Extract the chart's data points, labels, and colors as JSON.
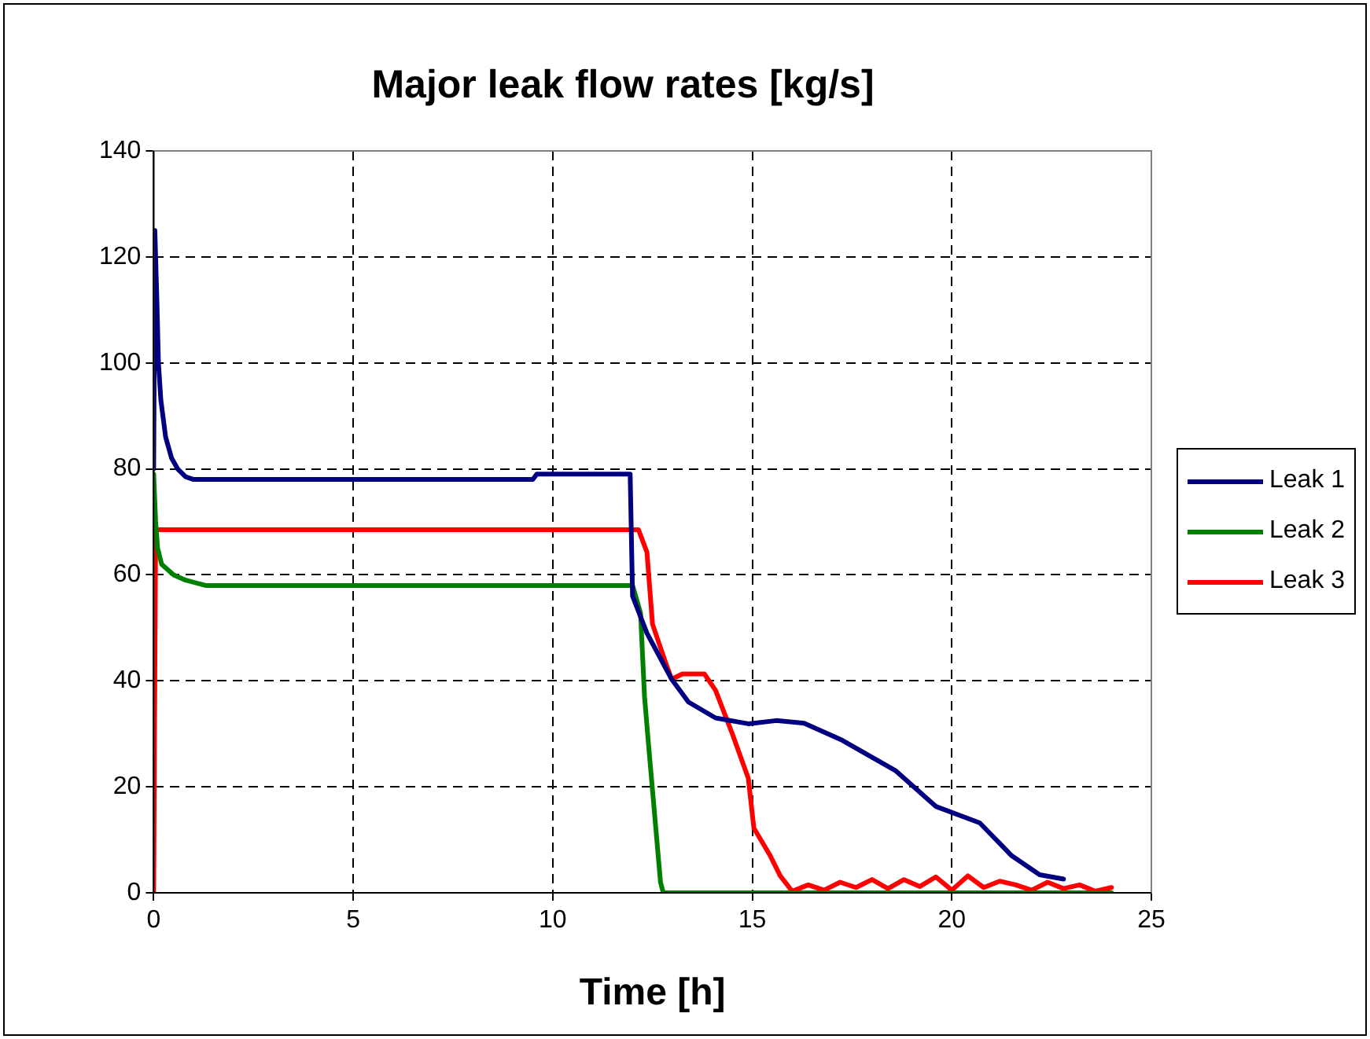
{
  "chart_data": {
    "type": "line",
    "title": "Major leak flow rates [kg/s]",
    "xlabel": "Time [h]",
    "xlim": [
      0,
      25
    ],
    "xticks": [
      0,
      5,
      10,
      15,
      20,
      25
    ],
    "ylim": [
      0,
      140
    ],
    "yticks": [
      0,
      20,
      40,
      60,
      80,
      100,
      120,
      140
    ],
    "grid": true,
    "legend": "right",
    "marker": "none",
    "line_style": "solid",
    "series": [
      {
        "name": "Leak 1",
        "color": "#000080",
        "x": [
          0,
          0.03,
          0.08,
          0.12,
          0.18,
          0.3,
          0.45,
          0.6,
          0.8,
          1,
          9.5,
          9.6,
          11.94,
          12.0,
          12.36,
          12.98,
          13.4,
          14.08,
          14.9,
          15.6,
          16.3,
          17.25,
          18.6,
          19.6,
          20.7,
          21.5,
          22.2,
          22.8
        ],
        "values": [
          80,
          125,
          112,
          100,
          93,
          86,
          82,
          80,
          78.5,
          78,
          78,
          79,
          79,
          56,
          49,
          40.3,
          36,
          33,
          31.9,
          32.5,
          32,
          28.8,
          23,
          16.3,
          13.2,
          7,
          3.4,
          2.6
        ]
      },
      {
        "name": "Leak 2",
        "color": "#008000",
        "x": [
          0,
          0.05,
          0.1,
          0.2,
          0.5,
          0.8,
          1.3,
          12.0,
          12.2,
          12.3,
          12.4,
          12.7,
          12.77,
          24
        ],
        "values": [
          79,
          70,
          65,
          62,
          60,
          59,
          58,
          58,
          52.8,
          37,
          28,
          2,
          0,
          0
        ]
      },
      {
        "name": "Leak 3",
        "color": "#ff0000",
        "x": [
          0,
          0.05,
          12.15,
          12.36,
          12.5,
          12.83,
          12.98,
          13.25,
          13.8,
          14.08,
          14.5,
          14.9,
          15.04,
          15.45,
          15.7,
          16.0,
          16.4,
          16.8,
          17.2,
          17.6,
          18.0,
          18.4,
          18.8,
          19.2,
          19.6,
          20.0,
          20.4,
          20.8,
          21.2,
          21.6,
          22.0,
          22.4,
          22.8,
          23.2,
          23.6,
          24
        ],
        "values": [
          0,
          68.5,
          68.5,
          64.3,
          50.7,
          43.4,
          40.3,
          41.3,
          41.3,
          38.2,
          30,
          21.6,
          12.2,
          7,
          3.2,
          0.3,
          1.5,
          0.5,
          2,
          1,
          2.5,
          0.8,
          2.5,
          1.2,
          3,
          0.5,
          3.2,
          1,
          2.2,
          1.5,
          0.5,
          2,
          0.8,
          1.5,
          0.3,
          1
        ]
      }
    ]
  }
}
